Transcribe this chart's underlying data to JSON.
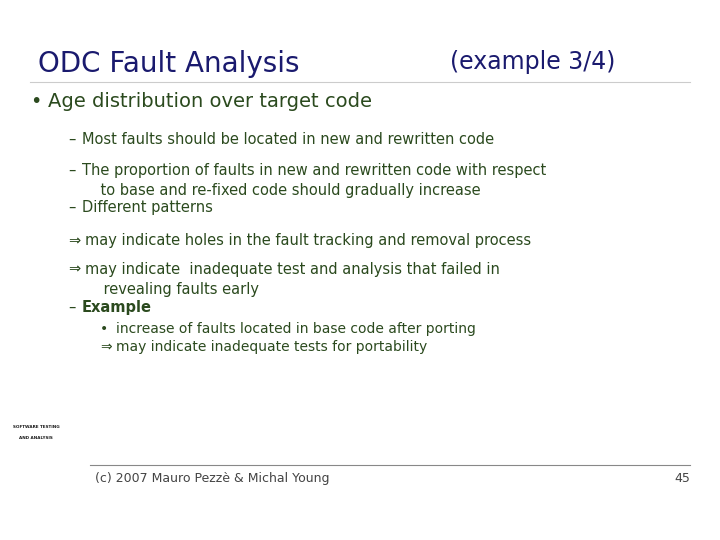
{
  "title": "ODC Fault Analysis",
  "subtitle": "(example 3/4)",
  "title_color": "#1a1a6e",
  "subtitle_color": "#1a1a6e",
  "body_text_color": "#2b4a1e",
  "background_color": "#ffffff",
  "footer_text": "(c) 2007 Mauro Pezzè & Michal Young",
  "page_number": "45",
  "bullet1": "Age distribution over target code",
  "sub_bullets": [
    "Most faults should be located in new and rewritten code",
    "The proportion of faults in new and rewritten code with respect\n    to base and re-fixed code should gradually increase",
    "Different patterns"
  ],
  "arrows": [
    "may indicate holes in the fault tracking and removal process",
    "may indicate  inadequate test and analysis that failed in\n    revealing faults early"
  ],
  "example_label": "Example",
  "example_sub": [
    "increase of faults located in base code after porting",
    "may indicate inadequate tests for portability"
  ],
  "title_fontsize": 20,
  "subtitle_fontsize": 17,
  "bullet1_fontsize": 14,
  "body_fontsize": 10.5,
  "footer_fontsize": 9
}
